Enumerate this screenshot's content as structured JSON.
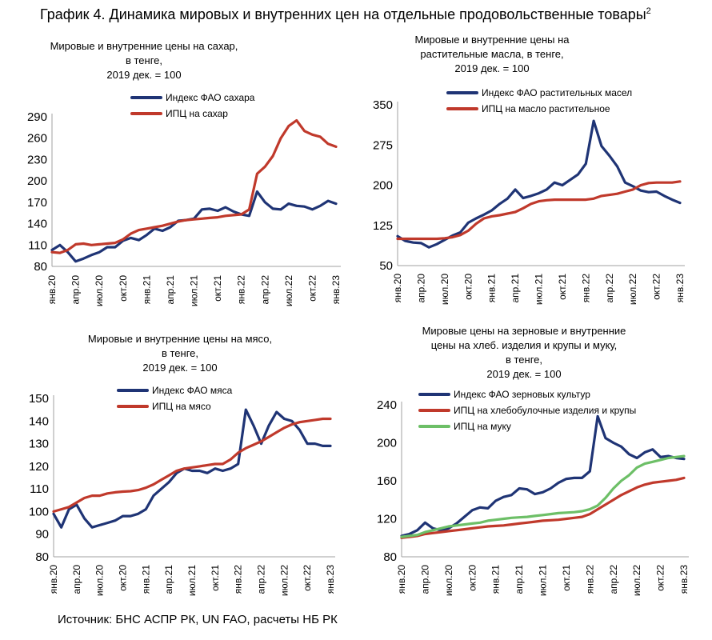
{
  "header": {
    "title": "График 4. Динамика мировых и внутренних цен на отдельные продовольственные товары",
    "footnote_mark": "2"
  },
  "footer": {
    "source": "Источник: БНС АСПР РК, UN FAO, расчеты НБ РК"
  },
  "colors": {
    "navy": "#1f3475",
    "red": "#c0392b",
    "green": "#6dbf67"
  },
  "chart_data": [
    {
      "type": "line",
      "title": [
        "Мировые  и внутренние цены на сахар,",
        "в тенге,",
        "2019 дек. = 100"
      ],
      "x_labels": [
        "янв.20",
        "апр.20",
        "июл.20",
        "окт.20",
        "янв.21",
        "апр.21",
        "июл.21",
        "окт.21",
        "янв.22",
        "апр.22",
        "июл.22",
        "окт.22",
        "янв.23"
      ],
      "yticks": [
        80,
        110,
        140,
        170,
        200,
        230,
        260,
        290
      ],
      "ylim": [
        80,
        290
      ],
      "series": [
        {
          "name": "Индекс ФАО сахара",
          "color": "#1f3475",
          "values": [
            103,
            110,
            100,
            87,
            91,
            96,
            100,
            107,
            107,
            116,
            120,
            117,
            124,
            133,
            130,
            135,
            144,
            145,
            147,
            160,
            161,
            158,
            163,
            157,
            153,
            151,
            185,
            170,
            161,
            160,
            168,
            165,
            164,
            160,
            165,
            172,
            168
          ]
        },
        {
          "name": "ИПЦ на сахар",
          "color": "#c0392b",
          "values": [
            100,
            99,
            103,
            111,
            112,
            110,
            111,
            112,
            113,
            118,
            126,
            131,
            133,
            135,
            137,
            140,
            143,
            145,
            146,
            147,
            148,
            149,
            151,
            152,
            153,
            160,
            210,
            220,
            235,
            260,
            277,
            285,
            270,
            265,
            262,
            252,
            248
          ]
        }
      ]
    },
    {
      "type": "line",
      "title": [
        "Мировые  и внутренние цены на",
        "растительные масла, в тенге,",
        "2019 дек. = 100"
      ],
      "x_labels": [
        "янв.20",
        "апр.20",
        "июл.20",
        "окт.20",
        "янв.21",
        "апр.21",
        "июл.21",
        "окт.21",
        "янв.22",
        "апр.22",
        "июл.22",
        "окт.22",
        "янв.23"
      ],
      "yticks": [
        50,
        125,
        200,
        275,
        350
      ],
      "ylim": [
        50,
        350
      ],
      "series": [
        {
          "name": "Индекс ФАО растительных масел",
          "color": "#1f3475",
          "values": [
            105,
            96,
            93,
            92,
            84,
            90,
            98,
            106,
            112,
            130,
            138,
            145,
            153,
            165,
            175,
            192,
            176,
            180,
            185,
            192,
            205,
            200,
            210,
            220,
            240,
            320,
            273,
            255,
            235,
            205,
            198,
            190,
            187,
            188,
            180,
            173,
            167
          ]
        },
        {
          "name": "ИПЦ на масло растительное",
          "color": "#c0392b",
          "values": [
            100,
            100,
            100,
            100,
            100,
            100,
            101,
            103,
            107,
            115,
            128,
            138,
            142,
            144,
            147,
            150,
            157,
            165,
            170,
            172,
            173,
            173,
            173,
            173,
            173,
            175,
            180,
            182,
            184,
            188,
            192,
            200,
            204,
            205,
            205,
            205,
            207
          ]
        }
      ]
    },
    {
      "type": "line",
      "title": [
        "Мировые  и внутренние цены на мясо,",
        "в тенге,",
        "2019 дек. = 100"
      ],
      "x_labels": [
        "янв.20",
        "апр.20",
        "июл.20",
        "окт.20",
        "янв.21",
        "апр.21",
        "июл.21",
        "окт.21",
        "янв.22",
        "апр.22",
        "июл.22",
        "окт.22",
        "янв.23"
      ],
      "yticks": [
        80,
        90,
        100,
        110,
        120,
        130,
        140,
        150
      ],
      "ylim": [
        80,
        150
      ],
      "series": [
        {
          "name": "Индекс ФАО мяса",
          "color": "#1f3475",
          "values": [
            99,
            93,
            101,
            103,
            97,
            93,
            94,
            95,
            96,
            98,
            98,
            99,
            101,
            107,
            110,
            113,
            117,
            119,
            118,
            118,
            117,
            119,
            118,
            119,
            121,
            145,
            138,
            130,
            138,
            144,
            141,
            140,
            136,
            130,
            130,
            129,
            129
          ]
        },
        {
          "name": "ИПЦ на мясо",
          "color": "#c0392b",
          "values": [
            100,
            101,
            102,
            104,
            106,
            107,
            107,
            108,
            108.5,
            108.8,
            109,
            109.5,
            110.5,
            112,
            114,
            116,
            118,
            119,
            119.5,
            120,
            120.5,
            121,
            121,
            123,
            126,
            128,
            129.5,
            131,
            133,
            135,
            137,
            138.5,
            139.5,
            140,
            140.5,
            141,
            141
          ]
        }
      ]
    },
    {
      "type": "line",
      "title": [
        "Мировые  цены на зерновые и внутренние",
        "цены на хлеб. изделия и крупы и муку,",
        "в тенге,",
        "2019 дек. = 100"
      ],
      "x_labels": [
        "янв.20",
        "апр.20",
        "июл.20",
        "окт.20",
        "янв.21",
        "апр.21",
        "июл.21",
        "окт.21",
        "янв.22",
        "апр.22",
        "июл.22",
        "окт.22",
        "янв.23"
      ],
      "yticks": [
        80,
        120,
        160,
        200,
        240
      ],
      "ylim": [
        80,
        240
      ],
      "series": [
        {
          "name": "Индекс ФАО зерновых культур",
          "color": "#1f3475",
          "values": [
            102,
            104,
            108,
            116,
            110,
            108,
            110,
            115,
            122,
            129,
            132,
            131,
            139,
            143,
            145,
            152,
            151,
            146,
            148,
            152,
            158,
            162,
            163,
            163,
            170,
            228,
            205,
            200,
            196,
            188,
            184,
            190,
            193,
            185,
            186,
            184,
            183
          ]
        },
        {
          "name": "ИПЦ на хлебобулочные изделия и крупы",
          "color": "#c0392b",
          "values": [
            100,
            101,
            102,
            104,
            105,
            106,
            107,
            108,
            109,
            110,
            111,
            112,
            112.5,
            113,
            114,
            115,
            116,
            117,
            118,
            118.5,
            119,
            120,
            121,
            122,
            125,
            130,
            135,
            140,
            145,
            149,
            153,
            156,
            158,
            159,
            160,
            161,
            163
          ]
        },
        {
          "name": "ИПЦ на муку",
          "color": "#6dbf67",
          "values": [
            101,
            102,
            103,
            106,
            108,
            110,
            112,
            113,
            114,
            115,
            116,
            118,
            119,
            120,
            121,
            121.5,
            122,
            123,
            124,
            125,
            126,
            126.5,
            127,
            128,
            130,
            134,
            142,
            152,
            160,
            166,
            174,
            178,
            180,
            182,
            184,
            185,
            186
          ]
        }
      ]
    }
  ]
}
